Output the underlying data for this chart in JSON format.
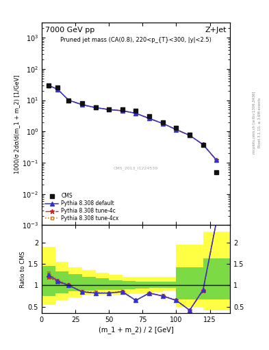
{
  "title_left": "7000 GeV pp",
  "title_right": "Z+Jet",
  "right_label1": "Rivet 3.1.10, ≥ 3.6M events",
  "right_label2": "mcplots.cern.ch [arXiv:1306.3436]",
  "cms_id": "CMS_2013_I1224539",
  "plot_title": "Pruned jet mass (CA(0.8), 220<p_{T}<300, |y|<2.5)",
  "ylabel_main": "1000/σ 2dσ/d(m_1 + m_2) [1/GeV]",
  "ylabel_ratio": "Ratio to CMS",
  "xlabel": "(m_1 + m_2) / 2 [GeV]",
  "xlim": [
    0,
    140
  ],
  "ylim_main": [
    0.001,
    3000.0
  ],
  "ylim_ratio": [
    0.35,
    2.4
  ],
  "cms_x": [
    5,
    12,
    20,
    30,
    40,
    50,
    60,
    70,
    80,
    90,
    100,
    110,
    120,
    130
  ],
  "cms_y": [
    30,
    25,
    10,
    8,
    6,
    5.2,
    5.0,
    4.5,
    3.0,
    2.0,
    1.3,
    0.8,
    0.37,
    0.05
  ],
  "default_x": [
    5,
    12,
    20,
    30,
    40,
    50,
    60,
    70,
    80,
    90,
    100,
    110,
    120,
    130
  ],
  "default_y": [
    30,
    22,
    10,
    7.2,
    5.8,
    5.0,
    4.6,
    3.8,
    2.6,
    1.8,
    1.15,
    0.75,
    0.38,
    0.12
  ],
  "tune4c_x": [
    5,
    12,
    20,
    30,
    40,
    50,
    60,
    70,
    80,
    90,
    100,
    110,
    120,
    130
  ],
  "tune4c_y": [
    30,
    22,
    10,
    7.2,
    5.8,
    5.0,
    4.6,
    3.8,
    2.6,
    1.8,
    1.15,
    0.75,
    0.38,
    0.12
  ],
  "tune4cx_x": [
    5,
    12,
    20,
    30,
    40,
    50,
    60,
    70,
    80,
    90,
    100,
    110,
    120,
    130
  ],
  "tune4cx_y": [
    30,
    22,
    10,
    7.2,
    5.8,
    5.0,
    4.6,
    3.8,
    2.6,
    1.8,
    1.15,
    0.75,
    0.38,
    0.12
  ],
  "ratio_x": [
    5,
    12,
    20,
    30,
    40,
    50,
    60,
    70,
    80,
    90,
    100,
    110,
    120,
    130
  ],
  "ratio_default": [
    1.25,
    1.1,
    1.0,
    0.85,
    0.82,
    0.82,
    0.85,
    0.65,
    0.82,
    0.75,
    0.65,
    0.42,
    0.9,
    2.5
  ],
  "ratio_4c": [
    1.2,
    1.08,
    1.0,
    0.85,
    0.82,
    0.82,
    0.85,
    0.65,
    0.82,
    0.75,
    0.65,
    0.42,
    0.88,
    2.5
  ],
  "ratio_4cx": [
    1.3,
    1.12,
    1.02,
    0.86,
    0.84,
    0.82,
    0.87,
    0.65,
    0.82,
    0.76,
    0.66,
    0.42,
    0.88,
    2.5
  ],
  "band_x": [
    0,
    10,
    20,
    30,
    40,
    50,
    60,
    70,
    80,
    90,
    100,
    110,
    120,
    130,
    140
  ],
  "band_yellow_low": [
    0.55,
    0.65,
    0.72,
    0.78,
    0.78,
    0.78,
    0.8,
    0.82,
    0.85,
    0.88,
    0.5,
    0.5,
    0.42,
    0.42,
    0.42
  ],
  "band_yellow_high": [
    1.9,
    1.55,
    1.42,
    1.35,
    1.3,
    1.25,
    1.2,
    1.2,
    1.2,
    1.2,
    1.95,
    1.95,
    2.25,
    2.25,
    2.25
  ],
  "band_green_low": [
    0.75,
    0.82,
    0.86,
    0.88,
    0.89,
    0.89,
    0.91,
    0.92,
    0.94,
    0.94,
    0.68,
    0.68,
    0.68,
    0.68,
    0.68
  ],
  "band_green_high": [
    1.45,
    1.32,
    1.26,
    1.2,
    1.16,
    1.12,
    1.1,
    1.08,
    1.08,
    1.08,
    1.42,
    1.42,
    1.62,
    1.62,
    1.62
  ],
  "color_default": "#3333cc",
  "color_4c": "#cc2222",
  "color_4cx": "#cc7700",
  "color_cms": "#111111",
  "color_yellow": "#ffff44",
  "color_green": "#44cc44"
}
